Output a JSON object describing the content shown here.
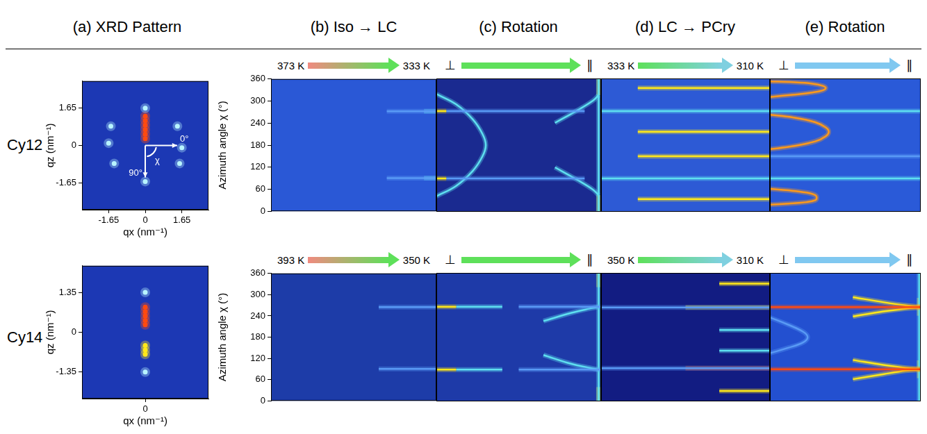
{
  "column_titles": [
    "(a) XRD Pattern",
    "(b) Iso → LC",
    "(c) Rotation",
    "(d) LC → PCry",
    "(e) Rotation"
  ],
  "row_labels": [
    "Cy12",
    "Cy14"
  ],
  "chart_data": [
    {
      "type": "scatter",
      "x_label": "qx (nm⁻¹)",
      "y_label": "qz (nm⁻¹)",
      "xlim": [
        -2.85,
        2.85
      ],
      "ylim": [
        -2.85,
        2.85
      ],
      "xticks": [
        -1.65,
        0,
        1.65
      ],
      "yticks": [
        -1.65,
        0,
        1.65
      ],
      "grid": false,
      "color": "#1c38b4",
      "annotations": [
        "0°",
        "90°",
        "χ"
      ],
      "series": [
        {
          "color": "#b8f4ff",
          "x": [
            0,
            0,
            -1.55,
            -1.65,
            -1.4,
            1.45,
            1.65,
            1.55
          ],
          "values": [
            1.65,
            -1.6,
            0.85,
            0.1,
            -0.8,
            0.85,
            -0.1,
            -0.8
          ]
        },
        {
          "color": "#ff4a10",
          "x": [
            0,
            0,
            0,
            0,
            0,
            0
          ],
          "values": [
            0.3,
            0.5,
            0.7,
            0.9,
            1.1,
            1.3
          ]
        }
      ]
    },
    {
      "type": "line",
      "y_label": "Azimuth angle χ (°)",
      "xlim": [
        373,
        333
      ],
      "ylim": [
        0,
        360
      ],
      "yticks": [
        0,
        60,
        120,
        180,
        240,
        300,
        360
      ],
      "tick_labels": "y",
      "grid": false,
      "color": "#2a58d6",
      "range_labels": [
        "373 K",
        "333 K"
      ],
      "series": [
        {
          "color": "#5a9af5",
          "x": [
            345,
            333
          ],
          "values": [
            272,
            272
          ]
        },
        {
          "color": "#5a9af5",
          "x": [
            345,
            333
          ],
          "values": [
            90,
            90
          ]
        },
        {
          "color": "#5fe0f0",
          "x": [
            336,
            333
          ],
          "values": [
            272,
            272
          ]
        },
        {
          "color": "#5fe0f0",
          "x": [
            336,
            333
          ],
          "values": [
            90,
            90
          ]
        }
      ]
    },
    {
      "type": "line",
      "xlim": [
        0,
        1
      ],
      "ylim": [
        0,
        360
      ],
      "tick_labels": false,
      "grid": false,
      "color": "#1a2a90",
      "range_labels": [
        "⊥",
        "∥"
      ],
      "series": [
        {
          "color": "#ffe81a",
          "x": [
            0,
            0.06
          ],
          "values": [
            272,
            272
          ]
        },
        {
          "color": "#ffe81a",
          "x": [
            0,
            0.06
          ],
          "values": [
            90,
            90
          ]
        },
        {
          "color": "#5a9af5",
          "x": [
            0.06,
            0.9
          ],
          "values": [
            272,
            272
          ]
        },
        {
          "color": "#5a9af5",
          "x": [
            0.06,
            0.9
          ],
          "values": [
            90,
            90
          ]
        },
        {
          "color": "#5fe0f0",
          "x": [
            0,
            0.12,
            0.22,
            0.28,
            0.3,
            0.28,
            0.22,
            0.12,
            0
          ],
          "values": [
            318,
            290,
            250,
            210,
            180,
            150,
            110,
            70,
            42
          ]
        },
        {
          "color": "#5fe0f0",
          "x": [
            0.72,
            0.86,
            0.95,
            0.985
          ],
          "values": [
            240,
            275,
            300,
            315
          ]
        },
        {
          "color": "#5fe0f0",
          "x": [
            0.72,
            0.86,
            0.95,
            0.985
          ],
          "values": [
            120,
            85,
            60,
            45
          ]
        },
        {
          "color": "#5fe0f0",
          "x": [
            0.985,
            0.985
          ],
          "values": [
            0,
            360
          ]
        },
        {
          "color": "#ffe81a",
          "x": [
            0.985,
            0.985
          ],
          "values": [
            0,
            45
          ]
        },
        {
          "color": "#ffe81a",
          "x": [
            0.985,
            0.985
          ],
          "values": [
            315,
            360
          ]
        }
      ]
    },
    {
      "type": "line",
      "xlim": [
        333,
        310
      ],
      "ylim": [
        0,
        360
      ],
      "tick_labels": false,
      "grid": false,
      "color": "#2d5ad5",
      "range_labels": [
        "333 K",
        "310 K"
      ],
      "series": [
        {
          "color": "#5fe0f0",
          "x": [
            333,
            310
          ],
          "values": [
            272,
            272
          ]
        },
        {
          "color": "#5fe0f0",
          "x": [
            333,
            310
          ],
          "values": [
            90,
            90
          ]
        },
        {
          "color": "#ffe81a",
          "x": [
            328,
            310
          ],
          "values": [
            334,
            334
          ]
        },
        {
          "color": "#ffe81a",
          "x": [
            328,
            310
          ],
          "values": [
            216,
            216
          ]
        },
        {
          "color": "#ffe81a",
          "x": [
            328,
            310
          ],
          "values": [
            150,
            150
          ]
        },
        {
          "color": "#ffe81a",
          "x": [
            328,
            310
          ],
          "values": [
            34,
            34
          ]
        }
      ]
    },
    {
      "type": "line",
      "xlim": [
        0,
        1
      ],
      "ylim": [
        0,
        360
      ],
      "tick_labels": false,
      "grid": false,
      "color": "#2a5ad8",
      "range_labels": [
        "⊥",
        "∥"
      ],
      "series": [
        {
          "color": "#5fe0f0",
          "x": [
            0,
            1
          ],
          "values": [
            272,
            272
          ]
        },
        {
          "color": "#5fe0f0",
          "x": [
            0,
            1
          ],
          "values": [
            90,
            90
          ]
        },
        {
          "color": "#5a9af5",
          "x": [
            0,
            1
          ],
          "values": [
            150,
            150
          ]
        },
        {
          "color": "#ff9a1a",
          "x": [
            0,
            0.15,
            0.28,
            0.35,
            0.37,
            0.35,
            0.28,
            0.15,
            0
          ],
          "values": [
            352,
            350,
            346,
            340,
            334,
            328,
            322,
            316,
            310
          ]
        },
        {
          "color": "#ff9a1a",
          "x": [
            0,
            0.15,
            0.3,
            0.37,
            0.39,
            0.37,
            0.3,
            0.15,
            0
          ],
          "values": [
            262,
            255,
            242,
            228,
            216,
            204,
            190,
            177,
            169
          ]
        },
        {
          "color": "#ff9a1a",
          "x": [
            0,
            0.12,
            0.24,
            0.3,
            0.31,
            0.3,
            0.24,
            0.12,
            0
          ],
          "values": [
            62,
            58,
            52,
            45,
            38,
            31,
            26,
            22,
            19
          ]
        }
      ]
    },
    {
      "type": "scatter",
      "x_label": "qx (nm⁻¹)",
      "y_label": "qz (nm⁻¹)",
      "xlim": [
        -2.25,
        2.25
      ],
      "ylim": [
        -2.25,
        2.25
      ],
      "xticks": [
        0
      ],
      "yticks": [
        -1.35,
        0,
        1.35
      ],
      "grid": false,
      "color": "#1c38b4",
      "series": [
        {
          "color": "#b8f4ff",
          "x": [
            0,
            0
          ],
          "values": [
            1.35,
            -1.35
          ]
        },
        {
          "color": "#ff4a10",
          "x": [
            0,
            0,
            0,
            0,
            0
          ],
          "values": [
            0.25,
            0.4,
            0.55,
            0.7,
            0.85
          ]
        },
        {
          "color": "#ffe81a",
          "x": [
            0,
            0,
            0
          ],
          "values": [
            -0.45,
            -0.6,
            -0.75
          ]
        }
      ]
    },
    {
      "type": "line",
      "y_label": "Azimuth angle χ (°)",
      "xlim": [
        393,
        350
      ],
      "ylim": [
        0,
        360
      ],
      "yticks": [
        0,
        60,
        120,
        180,
        240,
        300,
        360
      ],
      "tick_labels": "y",
      "grid": false,
      "color": "#1d3ca8",
      "range_labels": [
        "393 K",
        "350 K"
      ],
      "series": [
        {
          "color": "#5a9af5",
          "x": [
            365,
            350
          ],
          "values": [
            265,
            265
          ]
        },
        {
          "color": "#5a9af5",
          "x": [
            365,
            350
          ],
          "values": [
            90,
            90
          ]
        }
      ]
    },
    {
      "type": "line",
      "xlim": [
        0,
        1
      ],
      "ylim": [
        0,
        360
      ],
      "tick_labels": false,
      "grid": false,
      "color": "#1e3aa8",
      "range_labels": [
        "⊥",
        "∥"
      ],
      "series": [
        {
          "color": "#ffe81a",
          "x": [
            0,
            0.12
          ],
          "values": [
            265,
            265
          ]
        },
        {
          "color": "#5fe0f0",
          "x": [
            0.12,
            0.4
          ],
          "values": [
            265,
            265
          ]
        },
        {
          "color": "#ffe81a",
          "x": [
            0,
            0.12
          ],
          "values": [
            89,
            89
          ]
        },
        {
          "color": "#5fe0f0",
          "x": [
            0.12,
            0.4
          ],
          "values": [
            89,
            89
          ]
        },
        {
          "color": "#5a9af5",
          "x": [
            0.5,
            1
          ],
          "values": [
            265,
            265
          ]
        },
        {
          "color": "#5a9af5",
          "x": [
            0.5,
            1
          ],
          "values": [
            89,
            89
          ]
        },
        {
          "color": "#5fe0f0",
          "x": [
            0.65,
            0.82,
            0.93,
            0.985
          ],
          "values": [
            225,
            248,
            260,
            265
          ]
        },
        {
          "color": "#5fe0f0",
          "x": [
            0.65,
            0.82,
            0.93,
            0.985
          ],
          "values": [
            130,
            105,
            94,
            89
          ]
        },
        {
          "color": "#5fe0f0",
          "x": [
            0.985,
            0.985
          ],
          "values": [
            0,
            360
          ]
        },
        {
          "color": "#ffe81a",
          "x": [
            0.985,
            0.985
          ],
          "values": [
            320,
            360
          ]
        },
        {
          "color": "#ffe81a",
          "x": [
            0.985,
            0.985
          ],
          "values": [
            0,
            40
          ]
        }
      ]
    },
    {
      "type": "line",
      "xlim": [
        350,
        310
      ],
      "ylim": [
        0,
        360
      ],
      "tick_labels": false,
      "grid": false,
      "color": "#121c82",
      "range_labels": [
        "350 K",
        "310 K"
      ],
      "series": [
        {
          "color": "#5a9af5",
          "x": [
            350,
            310
          ],
          "values": [
            263,
            263
          ]
        },
        {
          "color": "#5a9af5",
          "x": [
            350,
            310
          ],
          "values": [
            93,
            93
          ]
        },
        {
          "color": "#ffe81a",
          "x": [
            322,
            310
          ],
          "values": [
            330,
            330
          ]
        },
        {
          "color": "#ffe81a",
          "x": [
            330,
            310
          ],
          "values": [
            263,
            263
          ]
        },
        {
          "color": "#5fe0f0",
          "x": [
            322,
            310
          ],
          "values": [
            200,
            200
          ]
        },
        {
          "color": "#5fe0f0",
          "x": [
            322,
            310
          ],
          "values": [
            142,
            142
          ]
        },
        {
          "color": "#ff4a10",
          "x": [
            330,
            310
          ],
          "values": [
            93,
            93
          ]
        },
        {
          "color": "#ffe81a",
          "x": [
            322,
            310
          ],
          "values": [
            29,
            29
          ]
        }
      ]
    },
    {
      "type": "line",
      "xlim": [
        0,
        1
      ],
      "ylim": [
        0,
        360
      ],
      "tick_labels": false,
      "grid": false,
      "color": "#2350d0",
      "range_labels": [
        "⊥",
        "∥"
      ],
      "series": [
        {
          "color": "#ff4a10",
          "x": [
            0,
            1
          ],
          "values": [
            264,
            264
          ]
        },
        {
          "color": "#ff4a10",
          "x": [
            0,
            1
          ],
          "values": [
            90,
            90
          ]
        },
        {
          "color": "#ffe81a",
          "x": [
            0.55,
            0.75,
            0.9,
            1
          ],
          "values": [
            238,
            252,
            260,
            263
          ]
        },
        {
          "color": "#ffe81a",
          "x": [
            0.55,
            0.75,
            0.9,
            1
          ],
          "values": [
            292,
            278,
            269,
            265
          ]
        },
        {
          "color": "#ffe81a",
          "x": [
            0.55,
            0.75,
            0.9,
            1
          ],
          "values": [
            116,
            102,
            94,
            91
          ]
        },
        {
          "color": "#ffe81a",
          "x": [
            0.55,
            0.75,
            0.9,
            1
          ],
          "values": [
            62,
            76,
            86,
            89
          ]
        },
        {
          "color": "#5a9af5",
          "x": [
            0,
            0.12,
            0.22,
            0.25,
            0.22,
            0.12,
            0
          ],
          "values": [
            235,
            215,
            195,
            180,
            165,
            150,
            135
          ]
        },
        {
          "color": "#5fe0f0",
          "x": [
            0.99,
            0.99
          ],
          "values": [
            0,
            360
          ]
        },
        {
          "color": "#ffe81a",
          "x": [
            0.99,
            0.99
          ],
          "values": [
            240,
            290
          ]
        },
        {
          "color": "#ffe81a",
          "x": [
            0.99,
            0.99
          ],
          "values": [
            65,
            115
          ]
        }
      ]
    }
  ]
}
